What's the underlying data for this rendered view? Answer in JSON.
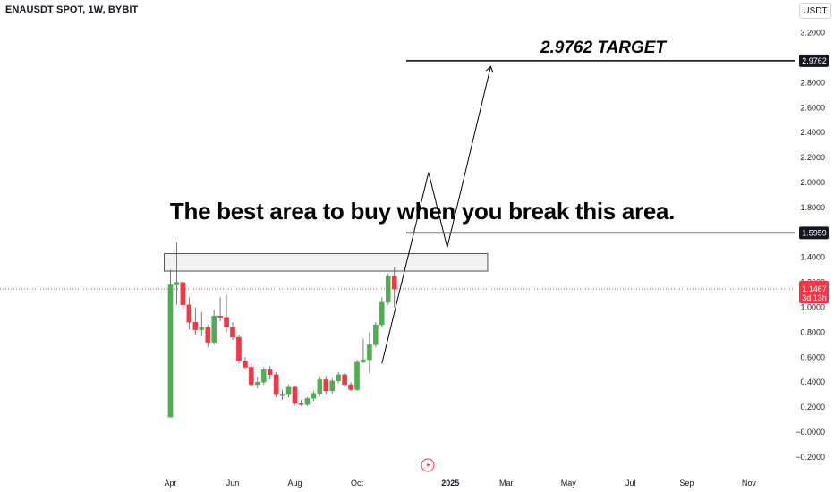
{
  "header": {
    "symbol": "ENAUSDT SPOT, 1W, BYBIT",
    "currency": "USDT"
  },
  "annotations": {
    "callout": "The best area to buy when you break this area.",
    "target_label": "2.9762 TARGET"
  },
  "colors": {
    "up": "#4caf50",
    "down": "#f23645",
    "price_line": "#f23645",
    "level_line": "#000000",
    "zone_fill": "#f2f2f2",
    "zone_border": "#555555"
  },
  "price": {
    "current": "1.1467",
    "countdown": "3d 13h"
  },
  "chart_data": {
    "type": "candlestick",
    "symbol": "ENAUSDT SPOT",
    "interval": "1W",
    "exchange": "BYBIT",
    "y_axis": {
      "range": [
        -0.25,
        3.3
      ],
      "ticks": [
        "3.2000",
        "2.8000",
        "2.6000",
        "2.4000",
        "2.2000",
        "2.0000",
        "1.8000",
        "1.4000",
        "1.2000",
        "1.0000",
        "0.8000",
        "0.6000",
        "0.4000",
        "0.2000",
        "−0.0000",
        "−0.2000"
      ],
      "tick_values": [
        3.2,
        2.8,
        2.6,
        2.4,
        2.2,
        2.0,
        1.8,
        1.4,
        1.2,
        1.0,
        0.8,
        0.6,
        0.4,
        0.2,
        0.0,
        -0.2
      ]
    },
    "x_axis": {
      "labels": [
        "Apr",
        "Jun",
        "Aug",
        "Oct",
        "2025",
        "Mar",
        "May",
        "Jul",
        "Sep",
        "Nov"
      ],
      "bold": [
        "2025"
      ],
      "label_weeks": [
        0,
        10,
        20,
        30,
        45,
        54,
        64,
        74,
        83,
        93
      ],
      "week_range": [
        -3,
        100
      ]
    },
    "candles": [
      {
        "o": 0.12,
        "h": 1.3,
        "l": 0.12,
        "c": 1.18
      },
      {
        "o": 1.18,
        "h": 1.52,
        "l": 1.02,
        "c": 1.2
      },
      {
        "o": 1.2,
        "h": 1.21,
        "l": 0.98,
        "c": 1.02
      },
      {
        "o": 1.02,
        "h": 1.08,
        "l": 0.82,
        "c": 0.88
      },
      {
        "o": 0.88,
        "h": 1.0,
        "l": 0.78,
        "c": 0.82
      },
      {
        "o": 0.82,
        "h": 0.96,
        "l": 0.77,
        "c": 0.84
      },
      {
        "o": 0.84,
        "h": 0.86,
        "l": 0.68,
        "c": 0.72
      },
      {
        "o": 0.72,
        "h": 0.98,
        "l": 0.7,
        "c": 0.93
      },
      {
        "o": 0.93,
        "h": 1.08,
        "l": 0.89,
        "c": 0.92
      },
      {
        "o": 0.92,
        "h": 1.1,
        "l": 0.8,
        "c": 0.84
      },
      {
        "o": 0.84,
        "h": 0.88,
        "l": 0.74,
        "c": 0.76
      },
      {
        "o": 0.76,
        "h": 0.78,
        "l": 0.55,
        "c": 0.57
      },
      {
        "o": 0.57,
        "h": 0.6,
        "l": 0.5,
        "c": 0.52
      },
      {
        "o": 0.52,
        "h": 0.55,
        "l": 0.36,
        "c": 0.38
      },
      {
        "o": 0.38,
        "h": 0.44,
        "l": 0.35,
        "c": 0.4
      },
      {
        "o": 0.4,
        "h": 0.52,
        "l": 0.38,
        "c": 0.5
      },
      {
        "o": 0.5,
        "h": 0.53,
        "l": 0.42,
        "c": 0.46
      },
      {
        "o": 0.46,
        "h": 0.48,
        "l": 0.28,
        "c": 0.3
      },
      {
        "o": 0.3,
        "h": 0.34,
        "l": 0.26,
        "c": 0.3
      },
      {
        "o": 0.3,
        "h": 0.38,
        "l": 0.28,
        "c": 0.36
      },
      {
        "o": 0.36,
        "h": 0.37,
        "l": 0.22,
        "c": 0.23
      },
      {
        "o": 0.23,
        "h": 0.26,
        "l": 0.21,
        "c": 0.22
      },
      {
        "o": 0.22,
        "h": 0.28,
        "l": 0.21,
        "c": 0.27
      },
      {
        "o": 0.27,
        "h": 0.33,
        "l": 0.25,
        "c": 0.31
      },
      {
        "o": 0.31,
        "h": 0.44,
        "l": 0.29,
        "c": 0.42
      },
      {
        "o": 0.42,
        "h": 0.45,
        "l": 0.3,
        "c": 0.33
      },
      {
        "o": 0.33,
        "h": 0.43,
        "l": 0.31,
        "c": 0.41
      },
      {
        "o": 0.41,
        "h": 0.48,
        "l": 0.39,
        "c": 0.46
      },
      {
        "o": 0.46,
        "h": 0.47,
        "l": 0.36,
        "c": 0.38
      },
      {
        "o": 0.38,
        "h": 0.4,
        "l": 0.33,
        "c": 0.34
      },
      {
        "o": 0.34,
        "h": 0.58,
        "l": 0.33,
        "c": 0.56
      },
      {
        "o": 0.56,
        "h": 0.75,
        "l": 0.55,
        "c": 0.58
      },
      {
        "o": 0.58,
        "h": 0.8,
        "l": 0.47,
        "c": 0.7
      },
      {
        "o": 0.7,
        "h": 0.88,
        "l": 0.68,
        "c": 0.86
      },
      {
        "o": 0.86,
        "h": 1.08,
        "l": 0.84,
        "c": 1.04
      },
      {
        "o": 1.04,
        "h": 1.27,
        "l": 1.02,
        "c": 1.25
      },
      {
        "o": 1.25,
        "h": 1.32,
        "l": 1.0,
        "c": 1.1467
      }
    ],
    "levels": [
      {
        "price": 2.9762,
        "label": "2.9762"
      },
      {
        "price": 1.5959,
        "label": "1.5959"
      }
    ],
    "zone": {
      "top": 1.43,
      "bottom": 1.29,
      "week_start": -1,
      "week_end": 51
    },
    "projection_path": [
      {
        "week": 34,
        "price": 0.55
      },
      {
        "week": 41.5,
        "price": 2.08
      },
      {
        "week": 44.5,
        "price": 1.48
      },
      {
        "week": 51.5,
        "price": 2.93
      }
    ]
  }
}
